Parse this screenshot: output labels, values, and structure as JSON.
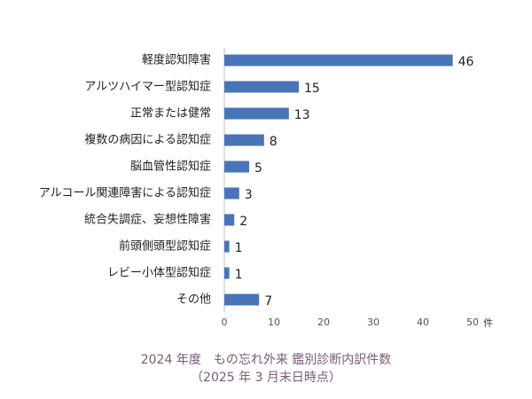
{
  "chart_data": {
    "type": "bar",
    "orientation": "horizontal",
    "categories": [
      "軽度認知障害",
      "アルツハイマー型認知症",
      "正常または健常",
      "複数の病因による認知症",
      "脳血管性認知症",
      "アルコール関連障害による認知症",
      "統合失調症、妄想性障害",
      "前頭側頭型認知症",
      "レビー小体型認知症",
      "その他"
    ],
    "values": [
      46,
      15,
      13,
      8,
      5,
      3,
      2,
      1,
      1,
      7
    ],
    "xlim": [
      0,
      50
    ],
    "xticks": [
      0,
      10,
      20,
      30,
      40,
      50
    ],
    "xunit": "件",
    "bar_color": "#4a74b8",
    "grid": false,
    "legend": "none"
  },
  "caption": {
    "line1": "2024 年度　もの忘れ外来 鑑別診断内訳件数",
    "line2": "（2025 年 3 月末日時点）"
  }
}
